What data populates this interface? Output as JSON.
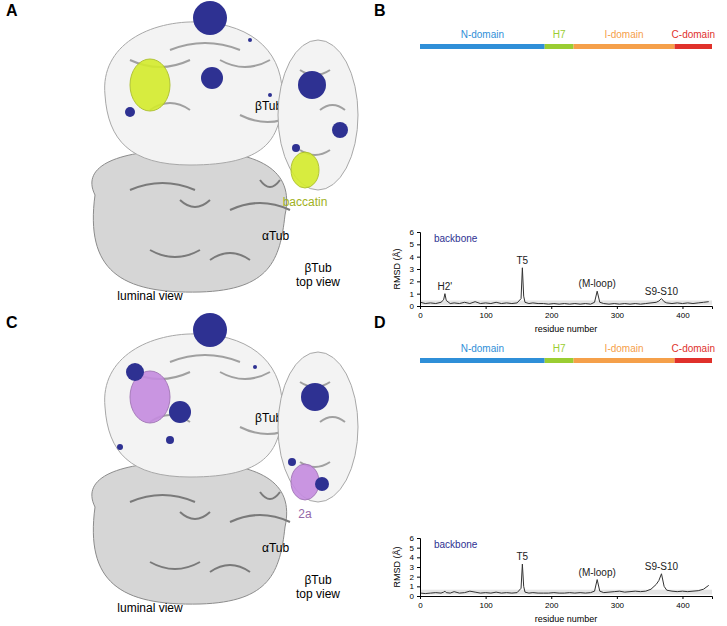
{
  "chart_data": [
    {
      "panel": "B",
      "type": "line",
      "xlabel": "residue number",
      "ylabel": "RMSD (Å)",
      "domains": [
        {
          "name": "N-domain",
          "color": "#2f8fd8",
          "start": 0,
          "end": 190
        },
        {
          "name": "H7",
          "color": "#9acd32",
          "start": 190,
          "end": 234
        },
        {
          "name": "I-domain",
          "color": "#f5a04a",
          "start": 234,
          "end": 388
        },
        {
          "name": "C-domain",
          "color": "#e0312b",
          "start": 388,
          "end": 445
        }
      ],
      "x": [
        1,
        8,
        16,
        24,
        32,
        36,
        38,
        40,
        46,
        52,
        60,
        68,
        76,
        84,
        92,
        100,
        108,
        116,
        124,
        132,
        140,
        148,
        154,
        156,
        158,
        160,
        166,
        172,
        180,
        188,
        196,
        204,
        212,
        220,
        228,
        236,
        244,
        252,
        260,
        266,
        270,
        274,
        280,
        288,
        296,
        304,
        312,
        320,
        328,
        336,
        344,
        352,
        360,
        364,
        368,
        372,
        376,
        384,
        392,
        400,
        408,
        416,
        424,
        432,
        440
      ],
      "series": [
        {
          "name": "backbone",
          "color": "#2e3192",
          "values": [
            0.3,
            0.2,
            0.25,
            0.2,
            0.3,
            0.5,
            1.0,
            0.45,
            0.2,
            0.25,
            0.2,
            0.3,
            0.2,
            0.35,
            0.2,
            0.25,
            0.2,
            0.3,
            0.2,
            0.25,
            0.2,
            0.25,
            0.6,
            3.1,
            0.8,
            0.3,
            0.2,
            0.25,
            0.2,
            0.2,
            0.15,
            0.2,
            0.15,
            0.2,
            0.15,
            0.2,
            0.15,
            0.2,
            0.15,
            0.3,
            1.2,
            0.3,
            0.2,
            0.15,
            0.2,
            0.15,
            0.2,
            0.15,
            0.2,
            0.15,
            0.2,
            0.25,
            0.3,
            0.4,
            0.6,
            0.35,
            0.25,
            0.2,
            0.25,
            0.2,
            0.25,
            0.2,
            0.25,
            0.3,
            0.35
          ]
        }
      ],
      "band": [
        0.1,
        0.45
      ],
      "annotations": [
        {
          "text": "H2'",
          "x": 38,
          "y": 1.0
        },
        {
          "text": "T5",
          "x": 156,
          "y": 3.1
        },
        {
          "text": "(M-loop)",
          "x": 270,
          "y": 1.2
        },
        {
          "text": "S9-S10",
          "x": 368,
          "y": 0.6
        }
      ],
      "xlim": [
        0,
        445
      ],
      "ylim": [
        0,
        6
      ],
      "xticks": [
        0,
        100,
        200,
        300,
        400
      ],
      "yticks": [
        0,
        1,
        2,
        3,
        4,
        5,
        6
      ]
    },
    {
      "panel": "D",
      "type": "line",
      "xlabel": "residue number",
      "ylabel": "RMSD (Å)",
      "domains": [
        {
          "name": "N-domain",
          "color": "#2f8fd8",
          "start": 0,
          "end": 190
        },
        {
          "name": "H7",
          "color": "#9acd32",
          "start": 190,
          "end": 234
        },
        {
          "name": "I-domain",
          "color": "#f5a04a",
          "start": 234,
          "end": 388
        },
        {
          "name": "C-domain",
          "color": "#e0312b",
          "start": 388,
          "end": 445
        }
      ],
      "x": [
        1,
        8,
        16,
        24,
        32,
        36,
        38,
        40,
        46,
        52,
        60,
        68,
        76,
        84,
        92,
        100,
        108,
        116,
        124,
        132,
        140,
        148,
        154,
        156,
        158,
        160,
        166,
        172,
        180,
        188,
        196,
        204,
        212,
        220,
        228,
        236,
        244,
        252,
        260,
        266,
        270,
        274,
        280,
        288,
        296,
        304,
        312,
        320,
        328,
        336,
        344,
        352,
        360,
        364,
        368,
        372,
        376,
        384,
        392,
        400,
        408,
        416,
        424,
        432,
        440
      ],
      "series": [
        {
          "name": "backbone",
          "color": "#2e3192",
          "values": [
            0.3,
            0.25,
            0.3,
            0.35,
            0.3,
            0.4,
            0.5,
            0.35,
            0.3,
            0.45,
            0.3,
            0.35,
            0.5,
            0.4,
            0.3,
            0.35,
            0.3,
            0.4,
            0.3,
            0.35,
            0.3,
            0.35,
            0.8,
            3.3,
            1.0,
            0.4,
            0.3,
            0.35,
            0.3,
            0.3,
            0.3,
            0.35,
            0.3,
            0.3,
            0.35,
            0.3,
            0.35,
            0.3,
            0.35,
            0.5,
            1.7,
            0.5,
            0.35,
            0.4,
            0.45,
            0.5,
            0.4,
            0.45,
            0.5,
            0.45,
            0.5,
            0.7,
            1.2,
            1.6,
            2.3,
            1.0,
            0.6,
            0.5,
            0.45,
            0.5,
            0.45,
            0.5,
            0.55,
            0.7,
            1.1
          ]
        }
      ],
      "band": [
        0.15,
        0.65
      ],
      "annotations": [
        {
          "text": "T5",
          "x": 156,
          "y": 3.3
        },
        {
          "text": "(M-loop)",
          "x": 270,
          "y": 1.7
        },
        {
          "text": "S9-S10",
          "x": 368,
          "y": 2.3
        }
      ],
      "xlim": [
        0,
        445
      ],
      "ylim": [
        0,
        6
      ],
      "xticks": [
        0,
        100,
        200,
        300,
        400
      ],
      "yticks": [
        0,
        1,
        2,
        3,
        4,
        5,
        6
      ]
    }
  ],
  "structures": [
    {
      "panel": "A",
      "subunits": [
        "βTub",
        "αTub"
      ],
      "view": "luminal view",
      "top_view": [
        "βTub",
        "top view"
      ],
      "ligand": "baccatin",
      "ligand_color": "#d4ec2c"
    },
    {
      "panel": "C",
      "subunits": [
        "βTub",
        "αTub"
      ],
      "view": "luminal view",
      "top_view": [
        "βTub",
        "top view"
      ],
      "ligand": "2a",
      "ligand_color": "#c58be0"
    }
  ]
}
